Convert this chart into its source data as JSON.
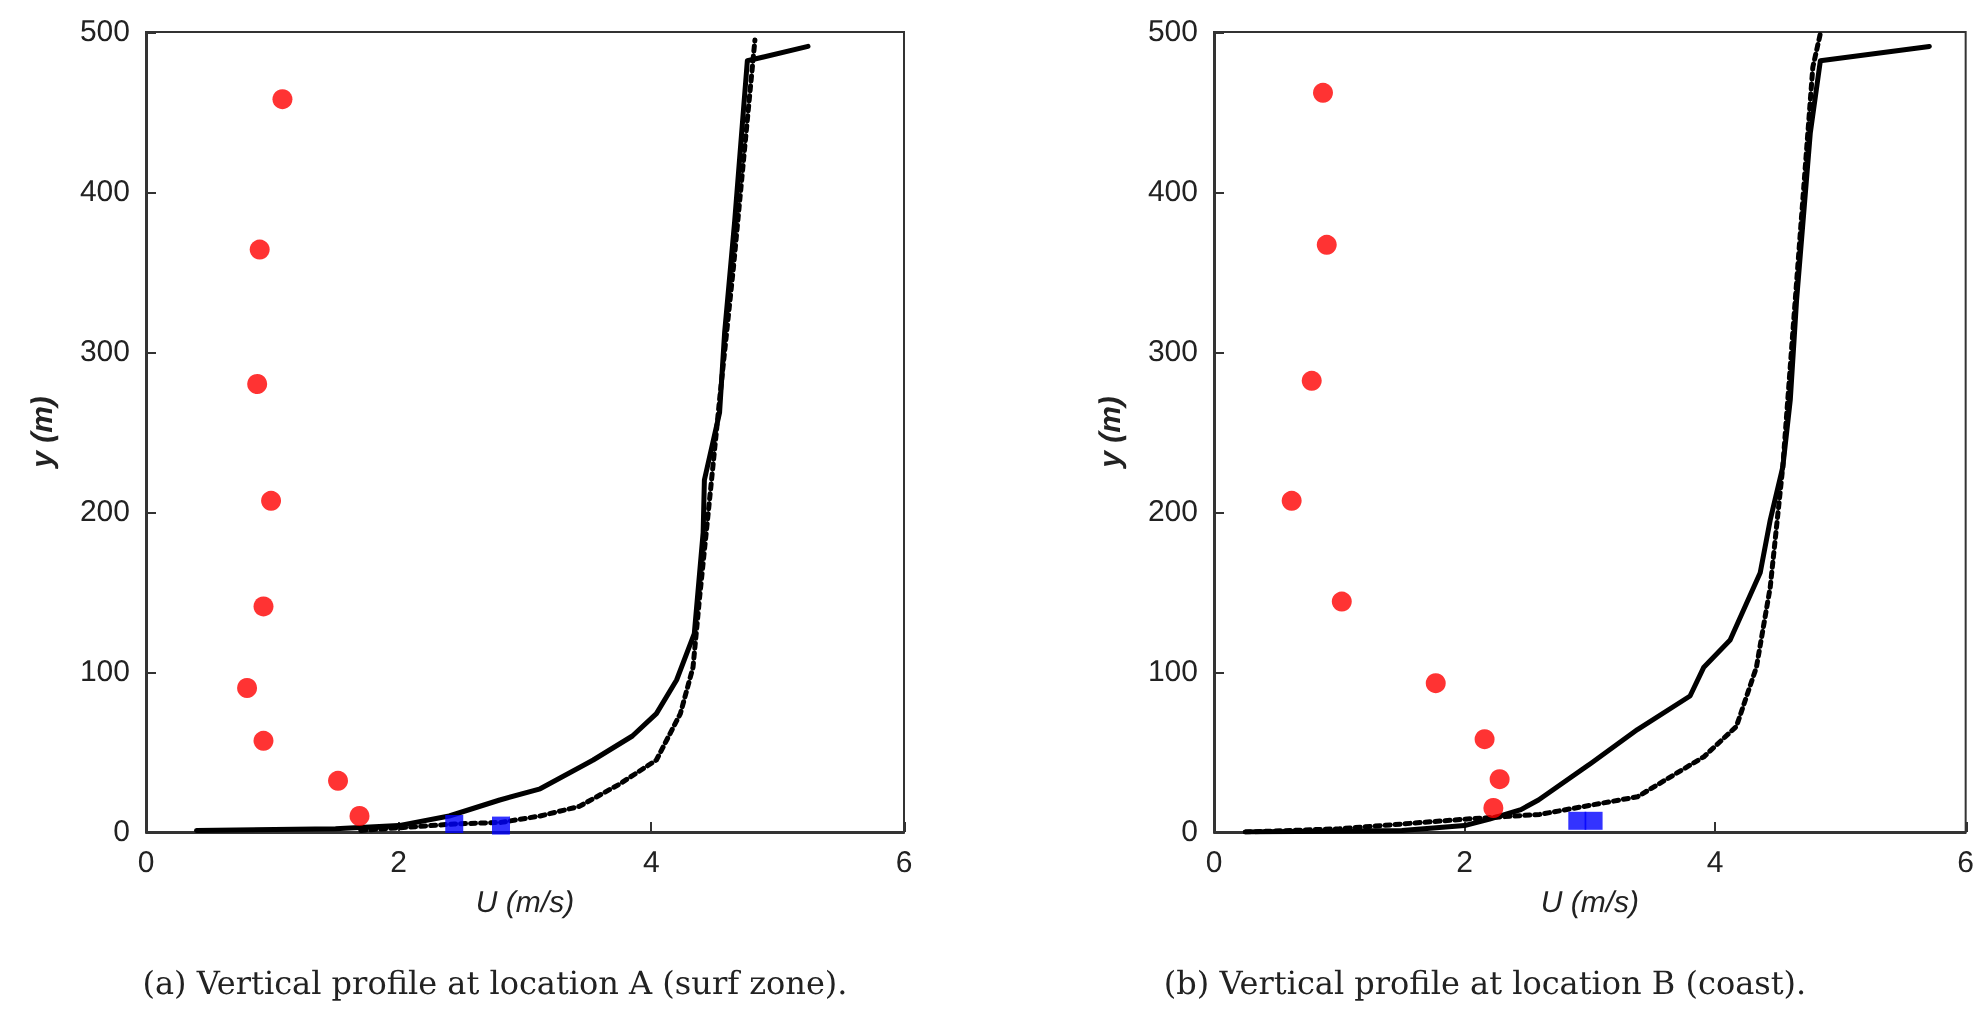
{
  "chart_data": [
    {
      "type": "line",
      "xlabel": "U (m/s)",
      "ylabel": "y (m)",
      "xlim": [
        0,
        6
      ],
      "xticks": [
        0,
        2,
        4,
        6
      ],
      "ylim": [
        0,
        500
      ],
      "yticks": [
        0,
        100,
        200,
        300,
        400,
        500
      ],
      "annotations": [
        "(a) Vertical profile at location A (surf zone)."
      ],
      "series": [
        {
          "color": "#000000",
          "line_style": "solid",
          "marker": "none",
          "x": [
            0.4,
            1.5,
            2.0,
            2.4,
            2.8,
            3.12,
            3.54,
            3.85,
            4.04,
            4.2,
            4.34,
            4.41,
            4.42,
            4.54,
            4.58,
            4.66,
            4.76,
            5.24
          ],
          "values": [
            1,
            2,
            4,
            10,
            20,
            27,
            45,
            60,
            74,
            95,
            124,
            187,
            220,
            262,
            312,
            382,
            482,
            491
          ]
        },
        {
          "color": "#000000",
          "line_style": "dotted",
          "marker": "none",
          "x": [
            1.7,
            2.44,
            2.81,
            3.12,
            3.43,
            3.75,
            4.04,
            4.23,
            4.33,
            4.38,
            4.46,
            4.54,
            4.65,
            4.75,
            4.82
          ],
          "values": [
            1,
            5,
            6,
            10,
            16,
            30,
            45,
            74,
            103,
            145,
            207,
            270,
            353,
            437,
            495
          ]
        },
        {
          "type": "scatter",
          "color": "#ff0000",
          "marker": "circle",
          "x": [
            1.08,
            0.9,
            0.88,
            0.99,
            0.93,
            0.8,
            0.93,
            1.52,
            1.69
          ],
          "values": [
            458,
            364,
            280,
            207,
            141,
            90,
            57,
            32,
            10
          ]
        },
        {
          "type": "scatter",
          "color": "#0000ff",
          "marker": "square",
          "x": [
            2.44,
            2.81
          ],
          "values": [
            5,
            4
          ]
        }
      ]
    },
    {
      "type": "line",
      "xlabel": "U (m/s)",
      "ylabel": "y (m)",
      "xlim": [
        0,
        6
      ],
      "xticks": [
        0,
        2,
        4,
        6
      ],
      "ylim": [
        0,
        500
      ],
      "yticks": [
        0,
        100,
        200,
        300,
        400,
        500
      ],
      "annotations": [
        "(b) Vertical profile at location B (coast)."
      ],
      "series": [
        {
          "color": "#000000",
          "line_style": "solid",
          "marker": "none",
          "x": [
            0.25,
            1.5,
            2.0,
            2.2,
            2.45,
            2.59,
            3.01,
            3.38,
            3.8,
            3.91,
            4.12,
            4.36,
            4.44,
            4.54,
            4.6,
            4.65,
            4.76,
            4.84,
            5.71
          ],
          "values": [
            0,
            1,
            4,
            8,
            14,
            20,
            43,
            64,
            85,
            103,
            120,
            162,
            195,
            228,
            270,
            332,
            437,
            482,
            491
          ]
        },
        {
          "color": "#000000",
          "line_style": "dotted",
          "marker": "none",
          "x": [
            0.25,
            1.0,
            2.0,
            2.6,
            3.38,
            3.91,
            4.17,
            4.33,
            4.44,
            4.54,
            4.62,
            4.7,
            4.78,
            4.84
          ],
          "values": [
            0,
            2,
            8,
            11,
            22,
            47,
            66,
            103,
            153,
            228,
            312,
            395,
            478,
            499
          ]
        },
        {
          "type": "scatter",
          "color": "#ff0000",
          "marker": "circle",
          "x": [
            0.87,
            0.9,
            0.78,
            0.62,
            1.02,
            1.77,
            2.16,
            2.28,
            2.23
          ],
          "values": [
            462,
            367,
            282,
            207,
            144,
            93,
            58,
            33,
            15
          ]
        },
        {
          "type": "scatter",
          "color": "#0000ff",
          "marker": "square",
          "x": [
            2.9,
            3.03
          ],
          "values": [
            7,
            7
          ]
        }
      ]
    }
  ]
}
